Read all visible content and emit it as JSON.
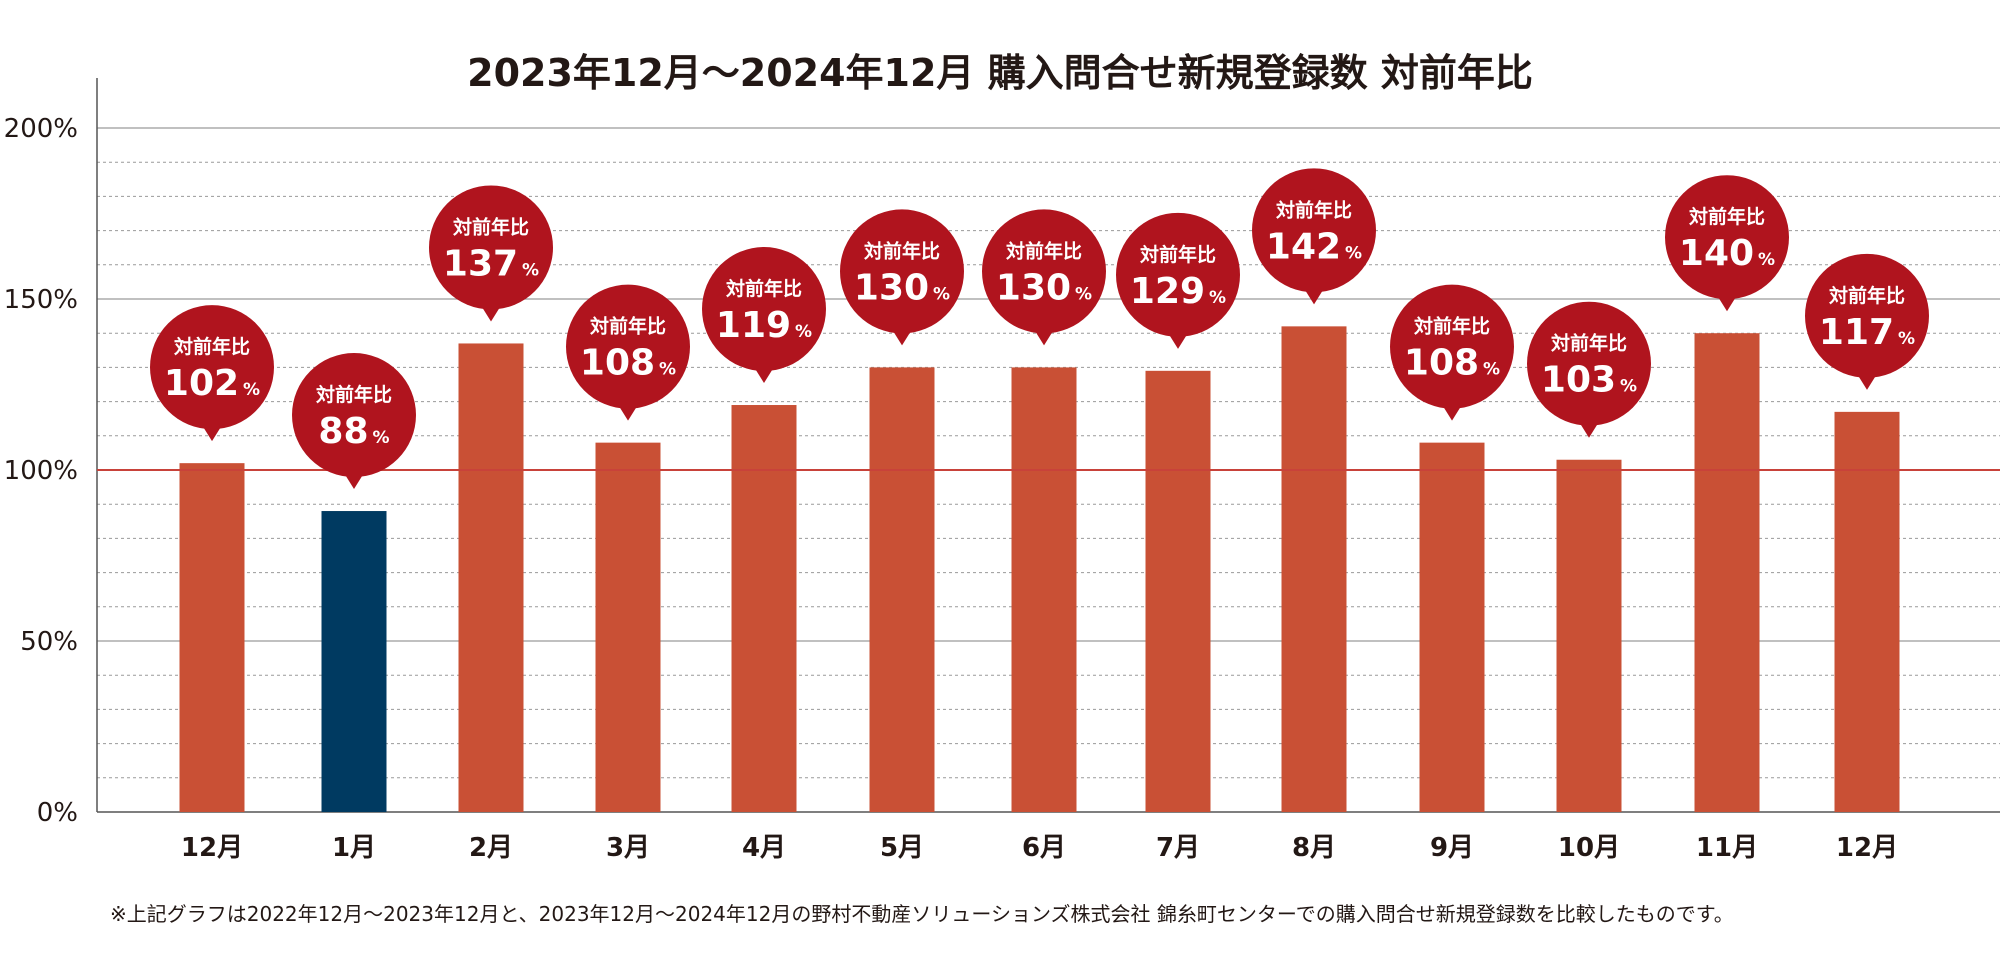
{
  "chart_data": {
    "type": "bar",
    "title": "2023年12月～2024年12月 購入問合せ新規登録数 対前年比",
    "categories": [
      "12月",
      "1月",
      "2月",
      "3月",
      "4月",
      "5月",
      "6月",
      "7月",
      "8月",
      "9月",
      "10月",
      "11月",
      "12月"
    ],
    "values": [
      102,
      88,
      137,
      108,
      119,
      130,
      130,
      129,
      142,
      108,
      103,
      140,
      117
    ],
    "bubble_label": "対前年比",
    "value_suffix": "%",
    "yticks": [
      "0%",
      "50%",
      "100%",
      "150%",
      "200%"
    ],
    "ylim": [
      0,
      200
    ],
    "reference_line": 100,
    "colors": {
      "bar": "#c95035",
      "bar_highlight": "#003a61",
      "bubble": "#b0141e",
      "reference_line": "#c8423a",
      "grid": "#9a9a9a"
    },
    "highlight_index": 1
  },
  "footnote": "※上記グラフは2022年12月～2023年12月と、2023年12月～2024年12月の野村不動産ソリューションズ株式会社 錦糸町センターでの購入問合せ新規登録数を比較したものです。"
}
